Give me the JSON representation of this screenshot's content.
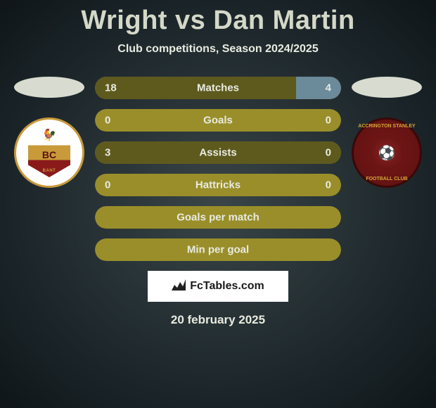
{
  "title": "Wright vs Dan Martin",
  "subtitle": "Club competitions, Season 2024/2025",
  "left_badge": {
    "initials": "BC",
    "sub": "BANT"
  },
  "right_badge": {
    "top_text": "ACCRINGTON STANLEY",
    "bottom_text": "FOOTBALL CLUB"
  },
  "stats": [
    {
      "label": "Matches",
      "left_val": "18",
      "right_val": "4",
      "left_pct": 81.8,
      "right_pct": 18.2,
      "bg_color": "#9a8e2a",
      "left_color": "#5e5a1e",
      "right_color": "#6b8a9a"
    },
    {
      "label": "Goals",
      "left_val": "0",
      "right_val": "0",
      "left_pct": 0,
      "right_pct": 0,
      "bg_color": "#9a8e2a",
      "left_color": "#9a8e2a",
      "right_color": "#9a8e2a"
    },
    {
      "label": "Assists",
      "left_val": "3",
      "right_val": "0",
      "left_pct": 100,
      "right_pct": 0,
      "bg_color": "#9a8e2a",
      "left_color": "#5e5a1e",
      "right_color": "#6b8a9a"
    },
    {
      "label": "Hattricks",
      "left_val": "0",
      "right_val": "0",
      "left_pct": 0,
      "right_pct": 0,
      "bg_color": "#9a8e2a",
      "left_color": "#9a8e2a",
      "right_color": "#9a8e2a"
    },
    {
      "label": "Goals per match",
      "left_val": "",
      "right_val": "",
      "left_pct": 0,
      "right_pct": 0,
      "bg_color": "#9a8e2a",
      "left_color": "#9a8e2a",
      "right_color": "#9a8e2a"
    },
    {
      "label": "Min per goal",
      "left_val": "",
      "right_val": "",
      "left_pct": 0,
      "right_pct": 0,
      "bg_color": "#9a8e2a",
      "left_color": "#9a8e2a",
      "right_color": "#9a8e2a"
    }
  ],
  "attribution": "FcTables.com",
  "date": "20 february 2025"
}
